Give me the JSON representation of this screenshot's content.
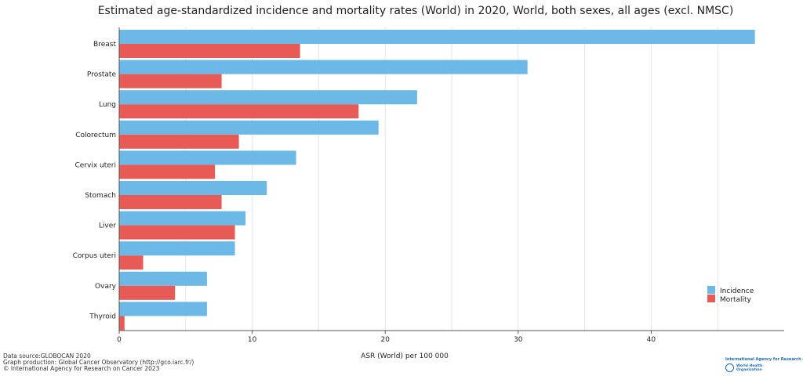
{
  "chart_data": {
    "type": "bar",
    "orientation": "horizontal",
    "title": "Estimated age-standardized incidence and mortality rates (World) in 2020, World, both sexes, all ages (excl. NMSC)",
    "xlabel": "ASR (World) per 100 000",
    "ylabel": "",
    "xlim": [
      0,
      50
    ],
    "xticks": [
      0,
      10,
      20,
      30,
      40
    ],
    "grid": true,
    "legend_position": "bottom-right",
    "categories": [
      "Breast",
      "Prostate",
      "Lung",
      "Colorectum",
      "Cervix uteri",
      "Stomach",
      "Liver",
      "Corpus uteri",
      "Ovary",
      "Thyroid"
    ],
    "series": [
      {
        "name": "Incidence",
        "color": "#6cb8e6",
        "values": [
          47.8,
          30.7,
          22.4,
          19.5,
          13.3,
          11.1,
          9.5,
          8.7,
          6.6,
          6.6
        ]
      },
      {
        "name": "Mortality",
        "color": "#e75a55",
        "values": [
          13.6,
          7.7,
          18.0,
          9.0,
          7.2,
          7.7,
          8.7,
          1.8,
          4.2,
          0.4
        ]
      }
    ]
  },
  "footer": {
    "line1": "Data source:GLOBOCAN 2020",
    "line2": "Graph production: Global Cancer Observatory (http://gco.iarc.fr/)",
    "line3": "© International Agency for Research on Cancer 2023"
  },
  "logo": {
    "iarc": "International Agency for Research on Cancer",
    "who": "World Health Organization"
  }
}
